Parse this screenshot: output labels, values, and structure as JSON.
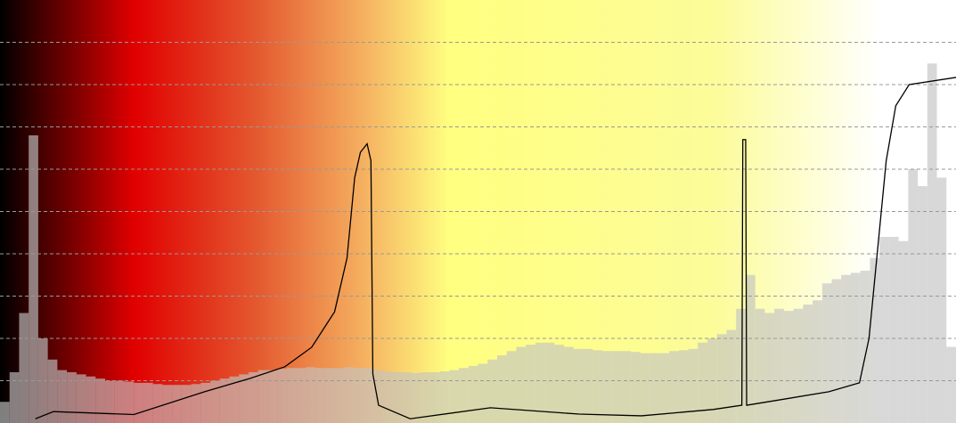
{
  "chart_data": {
    "type": "histogram",
    "xlim": [
      0,
      100
    ],
    "ylim": [
      0,
      10
    ],
    "yticks": [
      1,
      2,
      3,
      4,
      5,
      6,
      7,
      8,
      9
    ],
    "grid": true,
    "colormap": [
      {
        "position": 0,
        "color": "#000000"
      },
      {
        "position": 14,
        "color": "#e00000"
      },
      {
        "position": 27,
        "color": "#e45a30"
      },
      {
        "position": 38,
        "color": "#f5b060"
      },
      {
        "position": 47,
        "color": "#ffff80"
      },
      {
        "position": 75,
        "color": "#fcfc9a"
      },
      {
        "position": 92,
        "color": "#ffffff"
      },
      {
        "position": 100,
        "color": "#ffffff"
      }
    ],
    "bins": [
      0,
      1,
      2,
      3,
      4,
      5,
      6,
      7,
      8,
      9,
      10,
      11,
      12,
      13,
      14,
      15,
      16,
      17,
      18,
      19,
      20,
      21,
      22,
      23,
      24,
      25,
      26,
      27,
      28,
      29,
      30,
      31,
      32,
      33,
      34,
      35,
      36,
      37,
      38,
      39,
      40,
      41,
      42,
      43,
      44,
      45,
      46,
      47,
      48,
      49,
      50,
      51,
      52,
      53,
      54,
      55,
      56,
      57,
      58,
      59,
      60,
      61,
      62,
      63,
      64,
      65,
      66,
      67,
      68,
      69,
      70,
      71,
      72,
      73,
      74,
      75,
      76,
      77,
      78,
      79,
      80,
      81,
      82,
      83,
      84,
      85,
      86,
      87,
      88,
      89,
      90,
      91,
      92,
      93,
      94,
      95,
      96,
      97,
      98,
      99,
      100
    ],
    "counts": [
      0.5,
      1.2,
      2.6,
      6.8,
      2.0,
      1.5,
      1.25,
      1.2,
      1.15,
      1.1,
      1.05,
      1.0,
      1.0,
      0.98,
      0.95,
      0.95,
      0.92,
      0.9,
      0.9,
      0.9,
      0.92,
      0.95,
      1.0,
      1.05,
      1.1,
      1.15,
      1.2,
      1.25,
      1.25,
      1.28,
      1.3,
      1.3,
      1.32,
      1.3,
      1.3,
      1.3,
      1.32,
      1.3,
      1.3,
      1.25,
      1.22,
      1.2,
      1.2,
      1.18,
      1.2,
      1.2,
      1.22,
      1.25,
      1.3,
      1.35,
      1.4,
      1.5,
      1.6,
      1.7,
      1.8,
      1.85,
      1.9,
      1.9,
      1.85,
      1.8,
      1.75,
      1.75,
      1.72,
      1.7,
      1.7,
      1.7,
      1.68,
      1.65,
      1.65,
      1.65,
      1.7,
      1.72,
      1.75,
      1.9,
      2.0,
      2.1,
      2.2,
      2.7,
      3.5,
      2.7,
      2.6,
      2.7,
      2.65,
      2.7,
      2.8,
      2.9,
      3.3,
      3.4,
      3.5,
      3.55,
      3.6,
      3.9,
      4.4,
      4.4,
      4.3,
      6.0,
      5.6,
      8.5,
      5.8,
      1.8
    ],
    "bar_color": "rgba(195,195,195,0.65)",
    "curve": {
      "color": "#000000",
      "x": [
        3.7,
        5.6,
        14,
        21.4,
        26.1,
        29.8,
        32.6,
        35,
        36.3,
        37.1,
        37.7,
        38.4,
        38.8,
        39,
        39.6,
        42.9,
        51.3,
        60.6,
        67.1,
        74.6,
        77.6,
        77.7,
        78,
        78.1,
        81.1,
        86.7,
        89.9,
        90.9,
        91.8,
        92.7,
        93.7,
        95.1,
        100
      ],
      "values": [
        0.1,
        0.27,
        0.2,
        0.74,
        1.05,
        1.33,
        1.79,
        2.63,
        3.9,
        5.8,
        6.4,
        6.6,
        6.2,
        1.16,
        0.42,
        0.1,
        0.36,
        0.21,
        0.17,
        0.32,
        0.42,
        6.7,
        6.7,
        0.42,
        0.53,
        0.74,
        0.95,
        2.0,
        4.1,
        6.2,
        7.5,
        8.0,
        8.17
      ]
    }
  }
}
